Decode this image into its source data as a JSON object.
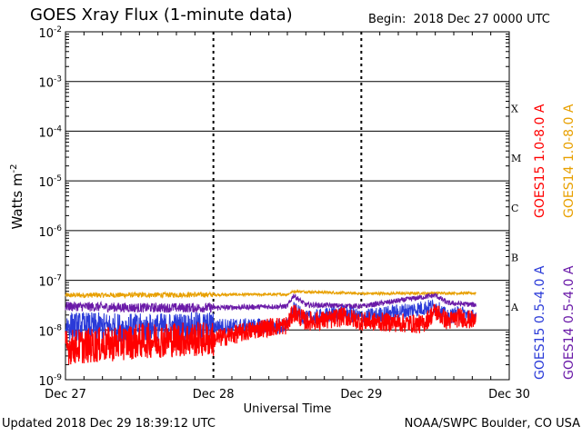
{
  "header": {
    "title": "GOES Xray Flux (1-minute data)",
    "begin_label": "Begin:",
    "begin_value": "2018 Dec 27 0000 UTC"
  },
  "footer": {
    "updated": "Updated 2018 Dec 29 18:39:12 UTC",
    "credit": "NOAA/SWPC Boulder, CO USA"
  },
  "colors": {
    "goes15_long": "#ff0000",
    "goes14_long": "#e8a000",
    "goes15_short": "#2a3ad8",
    "goes14_short": "#6a1aa8",
    "grid": "#000000",
    "background": "#ffffff"
  },
  "chart_data": {
    "type": "line",
    "title": "GOES Xray Flux (1-minute data)",
    "xlabel": "Universal Time",
    "ylabel": "Watts m^-2",
    "y_scale": "log",
    "ylim": [
      1e-09,
      0.01
    ],
    "xlim_days": [
      0,
      3
    ],
    "x_tick_labels": [
      "Dec 27",
      "Dec 28",
      "Dec 29",
      "Dec 30"
    ],
    "y_tick_labels": [
      {
        "base": "10",
        "exp": "-2",
        "value": 0.01
      },
      {
        "base": "10",
        "exp": "-3",
        "value": 0.001
      },
      {
        "base": "10",
        "exp": "-4",
        "value": 0.0001
      },
      {
        "base": "10",
        "exp": "-5",
        "value": 1e-05
      },
      {
        "base": "10",
        "exp": "-6",
        "value": 1e-06
      },
      {
        "base": "10",
        "exp": "-7",
        "value": 1e-07
      },
      {
        "base": "10",
        "exp": "-8",
        "value": 1e-08
      },
      {
        "base": "10",
        "exp": "-9",
        "value": 1e-09
      }
    ],
    "flare_classes": [
      {
        "label": "X",
        "value": 0.0003
      },
      {
        "label": "M",
        "value": 3e-05
      },
      {
        "label": "C",
        "value": 3e-06
      },
      {
        "label": "B",
        "value": 3e-07
      },
      {
        "label": "A",
        "value": 3e-08
      }
    ],
    "grid": true,
    "legend": "right-vertical",
    "series": [
      {
        "name": "GOES15 1.0-8.0 A",
        "color": "#ff0000",
        "noise": 0.55,
        "points": [
          [
            "Dec 27 00:00",
            4.5e-09
          ],
          [
            "Dec 27 06:00",
            5e-09
          ],
          [
            "Dec 27 12:00",
            6e-09
          ],
          [
            "Dec 27 18:00",
            6.5e-09
          ],
          [
            "Dec 28 00:00",
            6.5e-09
          ],
          [
            "Dec 28 05:00",
            9e-09
          ],
          [
            "Dec 28 08:00",
            1.1e-08
          ],
          [
            "Dec 28 12:00",
            1.25e-08
          ],
          [
            "Dec 28 13:00",
            2.3e-08
          ],
          [
            "Dec 28 15:00",
            1.5e-08
          ],
          [
            "Dec 28 19:00",
            1.6e-08
          ],
          [
            "Dec 28 21:00",
            1.9e-08
          ],
          [
            "Dec 29 00:00",
            1.5e-08
          ],
          [
            "Dec 29 06:00",
            1.4e-08
          ],
          [
            "Dec 29 10:00",
            1.3e-08
          ],
          [
            "Dec 29 12:00",
            2.4e-08
          ],
          [
            "Dec 29 14:00",
            1.5e-08
          ],
          [
            "Dec 29 16:00",
            1.8e-08
          ],
          [
            "Dec 29 18:39",
            1.5e-08
          ]
        ]
      },
      {
        "name": "GOES14 1.0-8.0 A",
        "color": "#e8a000",
        "noise": 0.08,
        "points": [
          [
            "Dec 27 00:00",
            5e-08
          ],
          [
            "Dec 28 12:00",
            5.2e-08
          ],
          [
            "Dec 28 13:00",
            6e-08
          ],
          [
            "Dec 29 00:00",
            5.4e-08
          ],
          [
            "Dec 29 12:00",
            5.5e-08
          ],
          [
            "Dec 29 18:39",
            5.5e-08
          ]
        ]
      },
      {
        "name": "GOES15 0.5-4.0 A",
        "color": "#2a3ad8",
        "noise": 0.45,
        "points": [
          [
            "Dec 27 00:00",
            1.2e-08
          ],
          [
            "Dec 27 12:00",
            1.1e-08
          ],
          [
            "Dec 28 00:00",
            1.2e-08
          ],
          [
            "Dec 28 12:00",
            1.2e-08
          ],
          [
            "Dec 28 13:00",
            2.6e-08
          ],
          [
            "Dec 28 15:00",
            1.7e-08
          ],
          [
            "Dec 28 21:00",
            2.2e-08
          ],
          [
            "Dec 29 00:00",
            1.8e-08
          ],
          [
            "Dec 29 12:00",
            3e-08
          ],
          [
            "Dec 29 14:00",
            1.8e-08
          ],
          [
            "Dec 29 16:00",
            2.2e-08
          ],
          [
            "Dec 29 18:39",
            1.8e-08
          ]
        ]
      },
      {
        "name": "GOES14 0.5-4.0 A",
        "color": "#6a1aa8",
        "noise": 0.15,
        "points": [
          [
            "Dec 27 00:00",
            3e-08
          ],
          [
            "Dec 27 12:00",
            2.8e-08
          ],
          [
            "Dec 28 00:00",
            2.8e-08
          ],
          [
            "Dec 28 12:00",
            3e-08
          ],
          [
            "Dec 28 13:00",
            5e-08
          ],
          [
            "Dec 28 15:00",
            3.2e-08
          ],
          [
            "Dec 29 00:00",
            3e-08
          ],
          [
            "Dec 29 12:00",
            5e-08
          ],
          [
            "Dec 29 14:00",
            3.5e-08
          ],
          [
            "Dec 29 18:39",
            3.2e-08
          ]
        ]
      }
    ]
  }
}
